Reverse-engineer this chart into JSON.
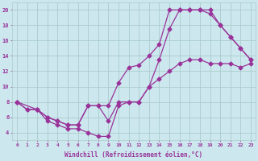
{
  "xlabel": "Windchill (Refroidissement éolien,°C)",
  "bg_color": "#cce8ee",
  "grid_color": "#aacccc",
  "line_color": "#993399",
  "xlim": [
    -0.5,
    23.5
  ],
  "ylim": [
    3.0,
    21.0
  ],
  "yticks": [
    4,
    6,
    8,
    10,
    12,
    14,
    16,
    18,
    20
  ],
  "xticks": [
    0,
    1,
    2,
    3,
    4,
    5,
    6,
    7,
    8,
    9,
    10,
    11,
    12,
    13,
    14,
    15,
    16,
    17,
    18,
    19,
    20,
    21,
    22,
    23
  ],
  "curve1_x": [
    0,
    1,
    2,
    3,
    4,
    5,
    6,
    7,
    8,
    9,
    10,
    11,
    12,
    13,
    14,
    15,
    16,
    17,
    18,
    19,
    20,
    21,
    22,
    23
  ],
  "curve1_y": [
    8,
    7,
    7,
    6,
    5.5,
    5,
    5,
    7.5,
    7.5,
    7.5,
    10.5,
    12.5,
    12.8,
    14,
    15.5,
    20,
    20,
    20,
    20,
    19.5,
    18,
    16.5,
    15,
    13.5
  ],
  "curve2_x": [
    0,
    2,
    3,
    4,
    5,
    6,
    7,
    8,
    9,
    10,
    11,
    12,
    13,
    14,
    15,
    16,
    17,
    18,
    19,
    20,
    21,
    22,
    23
  ],
  "curve2_y": [
    8,
    7,
    5.5,
    5,
    4.5,
    4.5,
    4,
    3.5,
    3.5,
    7.5,
    8,
    8,
    10,
    13.5,
    17.5,
    20,
    20,
    20,
    20,
    18,
    16.5,
    15,
    13.5
  ],
  "curve3_x": [
    0,
    1,
    2,
    3,
    4,
    5,
    6,
    7,
    8,
    9,
    10,
    11,
    12,
    13,
    14,
    15,
    16,
    17,
    18,
    19,
    20,
    21,
    22,
    23
  ],
  "curve3_y": [
    8,
    7,
    7,
    6,
    5.5,
    5,
    5,
    7.5,
    7.5,
    5.5,
    8,
    8,
    8,
    10,
    11,
    12,
    13,
    13.5,
    13.5,
    13,
    13,
    13,
    12.5,
    13
  ]
}
